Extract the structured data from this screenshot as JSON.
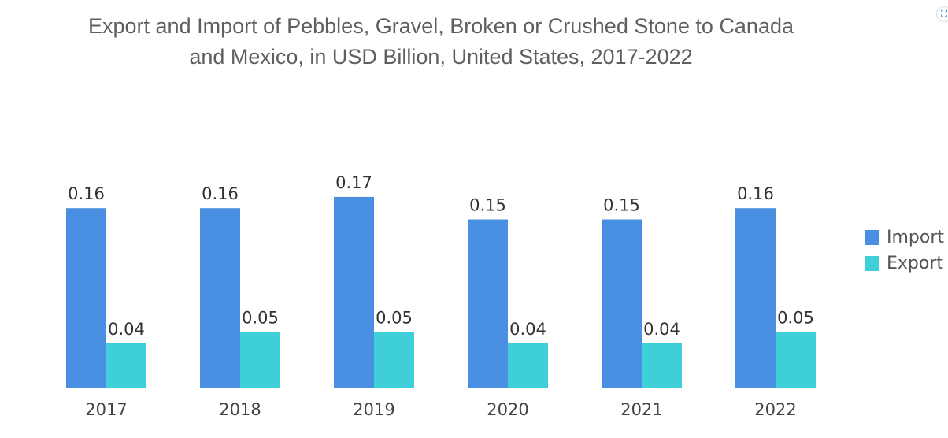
{
  "corner_icon": "expand-icon",
  "chart_data": {
    "type": "bar",
    "title": "Export and Import of Pebbles, Gravel, Broken or Crushed Stone to Canada and Mexico, in USD Billion, United States, 2017-2022",
    "title_lines": [
      "Export and Import of Pebbles, Gravel, Broken or Crushed Stone to Canada",
      "and Mexico, in USD Billion, United States, 2017-2022"
    ],
    "categories": [
      "2017",
      "2018",
      "2019",
      "2020",
      "2021",
      "2022"
    ],
    "series": [
      {
        "name": "Import",
        "color": "#4a90e2",
        "values": [
          0.16,
          0.16,
          0.17,
          0.15,
          0.15,
          0.16
        ],
        "labels": [
          "0.16",
          "0.16",
          "0.17",
          "0.15",
          "0.15",
          "0.16"
        ]
      },
      {
        "name": "Export",
        "color": "#3ecfd8",
        "values": [
          0.04,
          0.05,
          0.05,
          0.04,
          0.04,
          0.05
        ],
        "labels": [
          "0.04",
          "0.05",
          "0.05",
          "0.04",
          "0.04",
          "0.05"
        ]
      }
    ],
    "xlabel": "",
    "ylabel": "",
    "ylim": [
      0,
      0.2
    ],
    "grid": false,
    "legend_position": "right"
  }
}
